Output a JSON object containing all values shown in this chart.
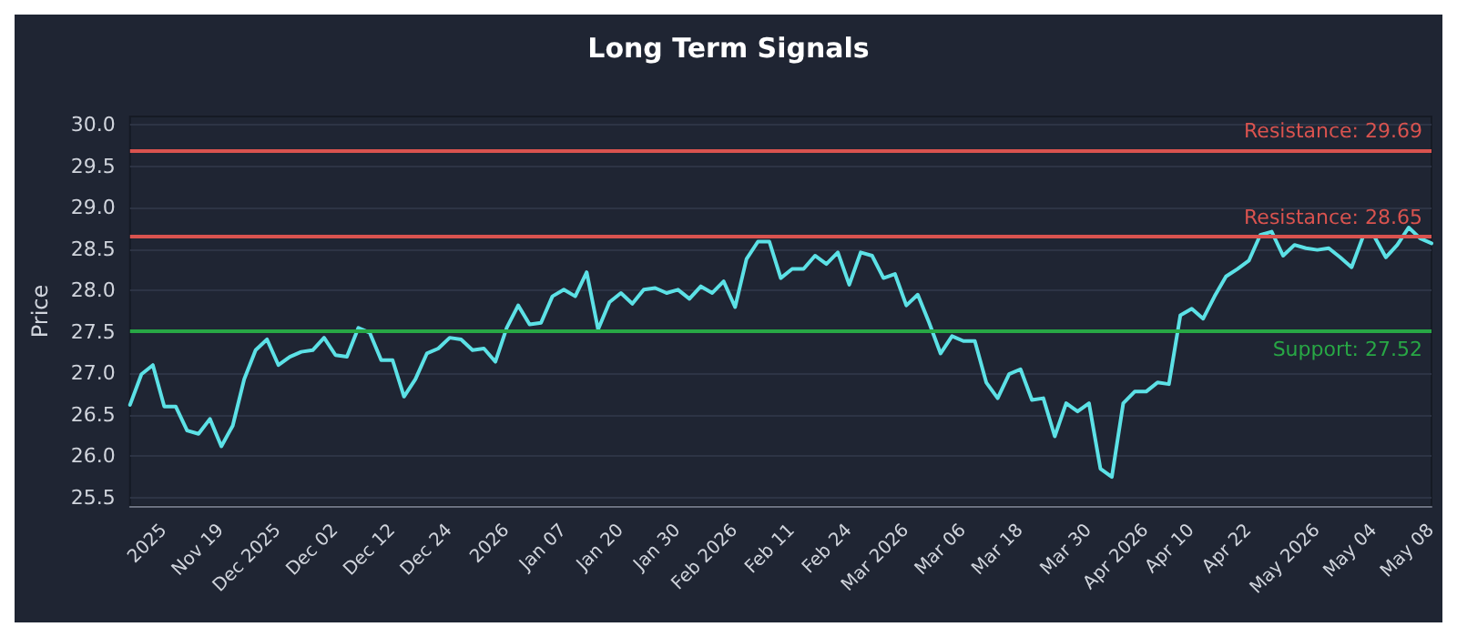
{
  "chart_data": {
    "type": "line",
    "title": "Long Term Signals",
    "ylabel": "Price",
    "categories": [
      null,
      null,
      null,
      "2025",
      null,
      null,
      null,
      null,
      "Nov 19",
      null,
      null,
      null,
      null,
      "Dec 2025",
      null,
      null,
      null,
      null,
      "Dec 02",
      null,
      null,
      null,
      null,
      "Dec 12",
      null,
      null,
      null,
      null,
      "Dec 24",
      null,
      null,
      null,
      null,
      "2026",
      null,
      null,
      null,
      null,
      "Jan 07",
      null,
      null,
      null,
      null,
      "Jan 20",
      null,
      null,
      null,
      null,
      "Jan 30",
      null,
      null,
      null,
      null,
      "Feb 2026",
      null,
      null,
      null,
      null,
      "Feb 11",
      null,
      null,
      null,
      null,
      "Feb 24",
      null,
      null,
      null,
      null,
      "Mar 2026",
      null,
      null,
      null,
      null,
      "Mar 06",
      null,
      null,
      null,
      null,
      "Mar 18",
      null,
      null,
      null,
      null,
      null,
      "Mar 30",
      null,
      null,
      null,
      null,
      "Apr 2026",
      null,
      null,
      null,
      "Apr 10",
      null,
      null,
      null,
      null,
      "Apr 22",
      null,
      null,
      null,
      null,
      null,
      "May 2026",
      null,
      null,
      null,
      null,
      "May 04",
      null,
      null,
      null,
      null,
      "May 08"
    ],
    "series": [
      {
        "color": "#5ce1e6",
        "values": [
          26.62,
          26.99,
          27.1,
          26.6,
          26.6,
          26.31,
          26.27,
          26.45,
          26.12,
          26.37,
          26.93,
          27.28,
          27.41,
          27.1,
          27.2,
          27.26,
          27.28,
          27.43,
          27.22,
          27.2,
          27.55,
          27.49,
          27.16,
          27.16,
          26.72,
          26.93,
          27.24,
          27.3,
          27.43,
          27.41,
          27.28,
          27.3,
          27.14,
          27.55,
          27.82,
          27.59,
          27.61,
          27.93,
          28.01,
          27.93,
          28.22,
          27.53,
          27.86,
          27.97,
          27.84,
          28.01,
          28.03,
          27.97,
          28.01,
          27.9,
          28.05,
          27.97,
          28.11,
          27.8,
          28.38,
          28.59,
          28.59,
          28.15,
          28.26,
          28.26,
          28.42,
          28.32,
          28.46,
          28.07,
          28.46,
          28.42,
          28.15,
          28.2,
          27.82,
          27.95,
          27.61,
          27.24,
          27.45,
          27.39,
          27.39,
          26.89,
          26.7,
          26.99,
          27.05,
          26.68,
          26.7,
          26.24,
          26.64,
          26.54,
          26.64,
          25.85,
          25.75,
          26.64,
          26.78,
          26.78,
          26.89,
          26.87,
          27.7,
          27.78,
          27.66,
          27.93,
          28.17,
          28.26,
          28.36,
          28.67,
          28.71,
          28.42,
          28.55,
          28.51,
          28.49,
          28.51,
          28.4,
          28.28,
          28.65,
          28.65,
          28.4,
          28.55,
          28.76,
          28.63,
          28.57
        ]
      }
    ],
    "ylim": [
      25.4,
      30.1
    ],
    "yticks": [
      25.5,
      {
        "value": 26,
        "label": "26.0"
      },
      26.5,
      {
        "value": 27,
        "label": "27.0"
      },
      27.5,
      {
        "value": 28,
        "label": "28.0"
      },
      28.5,
      {
        "value": 29,
        "label": "29.0"
      },
      29.5,
      {
        "value": 30,
        "label": "30.0"
      }
    ],
    "grid": "y",
    "marker": "none",
    "line_style": "solid",
    "ref_lines": [
      {
        "axis": "y",
        "value": 29.69,
        "label": "Resistance: 29.69",
        "color": "#d9534f"
      },
      {
        "axis": "y",
        "value": 28.65,
        "label": "Resistance: 28.65",
        "color": "#d9534f"
      },
      {
        "axis": "y",
        "value": 27.52,
        "label": "Support: 27.52",
        "color": "#28a745"
      }
    ]
  }
}
